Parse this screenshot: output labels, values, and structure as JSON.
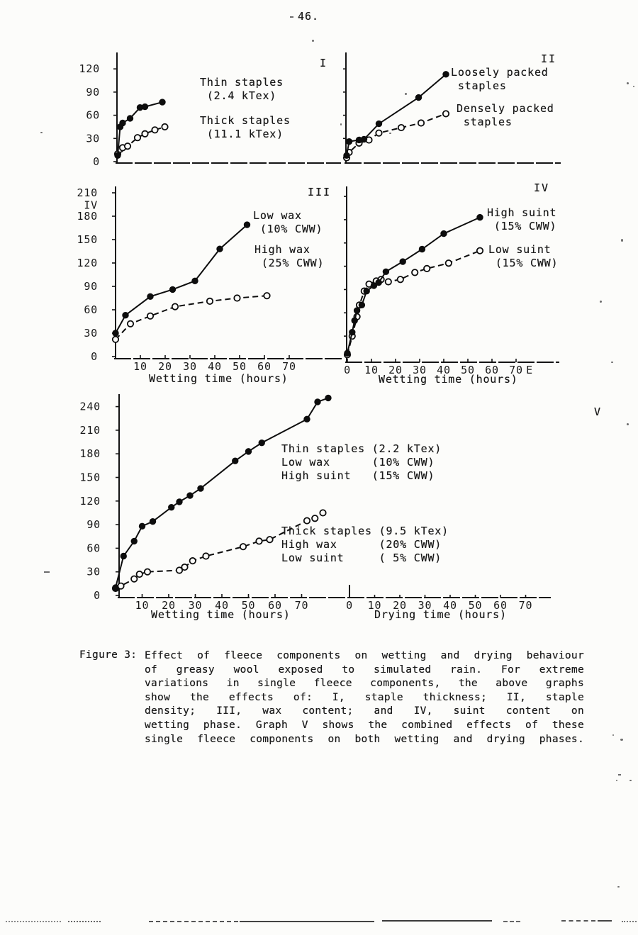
{
  "page": {
    "number": "46."
  },
  "caption": {
    "label": "Figure 3:",
    "lines": [
      "Effect of fleece components on wetting and drying behaviour",
      "of greasy wool exposed to simulated rain.  For extreme",
      "variations in single fleece components, the above graphs",
      "show the effects of:  I, staple thickness; II, staple",
      "density;  III, wax content;  and IV, suint content on",
      "wetting phase.  Graph V shows the combined effects of these",
      "single fleece components on both wetting and drying phases."
    ]
  },
  "ink_color": "#0d0d0d",
  "chart_data": [
    {
      "id": "I",
      "numeral": "I",
      "type": "line",
      "y_ticks": [
        120,
        90,
        60,
        30,
        0
      ],
      "x_ticks": [],
      "series": [
        {
          "name": "Thick staples (11.1 kTex)",
          "line": "dashed",
          "marker": "open",
          "points": [
            [
              0,
              10
            ],
            [
              1,
              16
            ],
            [
              2,
              18
            ],
            [
              4,
              20
            ],
            [
              8,
              31
            ],
            [
              11,
              36
            ],
            [
              15,
              41
            ],
            [
              19,
              45
            ]
          ]
        },
        {
          "name": "Thin staples (2.4 kTex)",
          "line": "solid",
          "marker": "filled",
          "points": [
            [
              0,
              8
            ],
            [
              1,
              45
            ],
            [
              2,
              50
            ],
            [
              5,
              56
            ],
            [
              9,
              70
            ],
            [
              11,
              71
            ],
            [
              18,
              77
            ]
          ]
        }
      ],
      "labels": [
        "Thin staples\n (2.4 kTex)",
        "Thick staples\n (11.1 kTex)"
      ]
    },
    {
      "id": "II",
      "numeral": "II",
      "type": "line",
      "y_ticks": [],
      "x_ticks": [],
      "series": [
        {
          "name": "Densely packed staples",
          "line": "dashed",
          "marker": "open",
          "points": [
            [
              0,
              5
            ],
            [
              1,
              12
            ],
            [
              5,
              24
            ],
            [
              9,
              28
            ],
            [
              13,
              37
            ],
            [
              22,
              44
            ],
            [
              30,
              50
            ],
            [
              40,
              62
            ]
          ]
        },
        {
          "name": "Loosely packed staples",
          "line": "solid",
          "marker": "filled",
          "points": [
            [
              0,
              8
            ],
            [
              1,
              26
            ],
            [
              5,
              28
            ],
            [
              7,
              29
            ],
            [
              13,
              49
            ],
            [
              29,
              83
            ],
            [
              40,
              113
            ]
          ]
        }
      ],
      "labels": [
        "Loosely packed\n staples",
        "Densely packed\n staples"
      ]
    },
    {
      "id": "III",
      "numeral": "III",
      "type": "line",
      "y_ticks": [
        210,
        180,
        150,
        120,
        90,
        60,
        30,
        0
      ],
      "y_axis_extra": "IV",
      "x_ticks": [
        10,
        20,
        30,
        40,
        50,
        60,
        70
      ],
      "xlabel": "Wetting time (hours)",
      "series": [
        {
          "name": "High wax (25% CWW)",
          "line": "dashed",
          "marker": "open",
          "points": [
            [
              0,
              22
            ],
            [
              6,
              42
            ],
            [
              14,
              52
            ],
            [
              24,
              64
            ],
            [
              38,
              71
            ],
            [
              49,
              75
            ],
            [
              61,
              78
            ]
          ]
        },
        {
          "name": "Low wax (10% CWW)",
          "line": "solid",
          "marker": "filled",
          "points": [
            [
              0,
              30
            ],
            [
              4,
              53
            ],
            [
              14,
              77
            ],
            [
              23,
              86
            ],
            [
              32,
              97
            ],
            [
              42,
              138
            ],
            [
              53,
              169
            ]
          ]
        }
      ],
      "labels": [
        "Low wax\n (10% CWW)",
        "High wax\n (25% CWW)"
      ]
    },
    {
      "id": "IV",
      "numeral": "IV",
      "type": "line",
      "y_ticks": [],
      "x_ticks": [
        0,
        10,
        20,
        30,
        40,
        50,
        60,
        70
      ],
      "x_axis_extra": "E",
      "xlabel": "Wetting time (hours)",
      "series": [
        {
          "name": "Low suint (15% CWW)",
          "line": "dashed",
          "marker": "open",
          "points": [
            [
              0,
              6
            ],
            [
              2,
              30
            ],
            [
              4,
              55
            ],
            [
              5,
              70
            ],
            [
              7,
              88
            ],
            [
              9,
              97
            ],
            [
              12,
              101
            ],
            [
              14,
              103
            ],
            [
              17,
              100
            ],
            [
              22,
              103
            ],
            [
              28,
              112
            ],
            [
              33,
              117
            ],
            [
              42,
              124
            ],
            [
              55,
              140
            ]
          ]
        },
        {
          "name": "High suint (15% CWW)",
          "line": "solid",
          "marker": "filled",
          "points": [
            [
              0,
              8
            ],
            [
              2,
              35
            ],
            [
              3,
              50
            ],
            [
              4,
              63
            ],
            [
              6,
              70
            ],
            [
              8,
              88
            ],
            [
              11,
              95
            ],
            [
              13,
              99
            ],
            [
              16,
              113
            ],
            [
              23,
              126
            ],
            [
              31,
              142
            ],
            [
              40,
              162
            ],
            [
              55,
              183
            ]
          ]
        }
      ],
      "labels": [
        "High suint\n (15% CWW)",
        "Low suint\n (15% CWW)"
      ]
    },
    {
      "id": "V",
      "numeral": "V",
      "type": "line",
      "y_ticks": [
        240,
        210,
        180,
        150,
        120,
        90,
        60,
        30,
        0
      ],
      "x_ticks": [
        10,
        20,
        30,
        40,
        50,
        60,
        70
      ],
      "x_ticks_drying": [
        0,
        10,
        20,
        30,
        40,
        50,
        60,
        70
      ],
      "xlabel": "Wetting time (hours)",
      "xlabel2": "Drying time (hours)",
      "series": [
        {
          "name": "Thick staples (9.5 kTex), High wax (20% CWW), Low suint ( 5% CWW)",
          "line": "dashed",
          "marker": "open",
          "points": [
            [
              0,
              9
            ],
            [
              2,
              12
            ],
            [
              7,
              21
            ],
            [
              9,
              27
            ],
            [
              12,
              30
            ],
            [
              24,
              32
            ],
            [
              26,
              36
            ],
            [
              29,
              44
            ],
            [
              34,
              50
            ],
            [
              48,
              62
            ],
            [
              54,
              69
            ],
            [
              58,
              71
            ],
            [
              72,
              95
            ],
            [
              75,
              98
            ],
            [
              78,
              105
            ]
          ]
        },
        {
          "name": "Thin staples (2.2 kTex), Low wax (10% CWW), High suint (15% CWW)",
          "line": "solid",
          "marker": "filled",
          "points": [
            [
              0,
              10
            ],
            [
              3,
              50
            ],
            [
              7,
              69
            ],
            [
              10,
              88
            ],
            [
              14,
              94
            ],
            [
              21,
              112
            ],
            [
              24,
              119
            ],
            [
              28,
              127
            ],
            [
              32,
              136
            ],
            [
              45,
              171
            ],
            [
              50,
              183
            ],
            [
              55,
              194
            ],
            [
              72,
              224
            ],
            [
              76,
              246
            ],
            [
              80,
              251
            ]
          ]
        }
      ],
      "labels": [
        "Thin staples (2.2 kTex)\nLow wax      (10% CWW)\nHigh suint   (15% CWW)",
        "Thick staples (9.5 kTex)\nHigh wax      (20% CWW)\nLow suint     ( 5% CWW)"
      ]
    }
  ]
}
